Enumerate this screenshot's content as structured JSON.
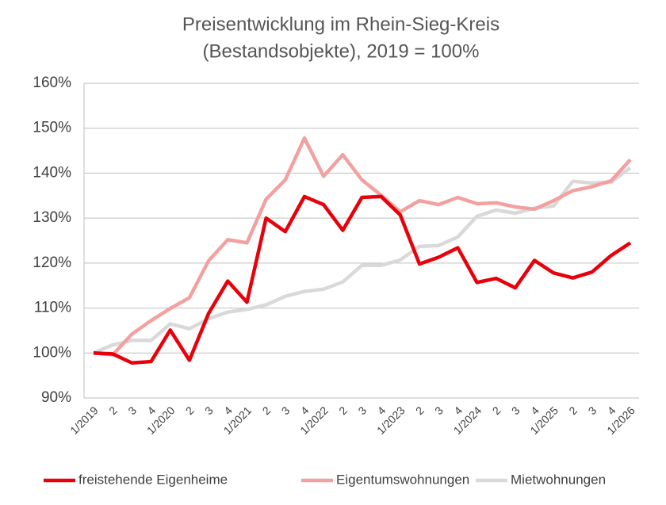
{
  "chart_data": {
    "type": "line",
    "title": [
      "Preisentwicklung im Rhein-Sieg-Kreis",
      "(Bestandsobjekte), 2019 = 100%"
    ],
    "categories": [
      "1/2019",
      "2",
      "3",
      "4",
      "1/2020",
      "2",
      "3",
      "4",
      "1/2021",
      "2",
      "3",
      "4",
      "1/2022",
      "2",
      "3",
      "4",
      "1/2023",
      "2",
      "3",
      "4",
      "1/2024",
      "2",
      "3",
      "4",
      "1/2025",
      "2",
      "3",
      "4",
      "1/2026"
    ],
    "series": [
      {
        "name": "freistehende Eigenheime",
        "color": "#e8000b",
        "values": [
          100,
          99.8,
          97.8,
          98.1,
          105.1,
          98.4,
          108.8,
          116.0,
          111.3,
          130,
          127,
          134.8,
          133,
          127.3,
          134.6,
          134.8,
          130.7,
          119.8,
          121.3,
          123.4,
          115.7,
          116.6,
          114.5,
          120.6,
          117.8,
          116.7,
          118,
          121.7,
          124.5
        ]
      },
      {
        "name": "Eigentumswohnungen",
        "color": "#f4a0a0",
        "values": [
          100,
          99.6,
          104.2,
          107.2,
          109.9,
          112.3,
          120.5,
          125.2,
          124.5,
          134.2,
          138.5,
          147.8,
          139.3,
          144.1,
          138.5,
          135.1,
          131.4,
          133.9,
          133,
          134.6,
          133.2,
          133.4,
          132.5,
          132,
          133.9,
          136.1,
          137,
          138.3,
          143
        ]
      },
      {
        "name": "Mietwohnungen",
        "color": "#d9d9d9",
        "values": [
          100,
          101.8,
          102.8,
          102.8,
          106.5,
          105.4,
          107.6,
          109.1,
          109.7,
          110.7,
          112.6,
          113.7,
          114.2,
          115.8,
          119.5,
          119.5,
          120.7,
          123.7,
          123.9,
          125.8,
          130.4,
          131.8,
          131.1,
          132.2,
          132.7,
          138.2,
          137.8,
          138,
          141.2
        ]
      }
    ],
    "ylim": [
      90,
      160
    ],
    "yticks": [
      {
        "value": 90,
        "label": "90%"
      },
      {
        "value": 100,
        "label": "100%"
      },
      {
        "value": 110,
        "label": "110%"
      },
      {
        "value": 120,
        "label": "120%"
      },
      {
        "value": 130,
        "label": "130%"
      },
      {
        "value": 140,
        "label": "140%"
      },
      {
        "value": 150,
        "label": "150%"
      },
      {
        "value": 160,
        "label": "160%"
      }
    ],
    "grid": true,
    "legend": "bottom"
  }
}
